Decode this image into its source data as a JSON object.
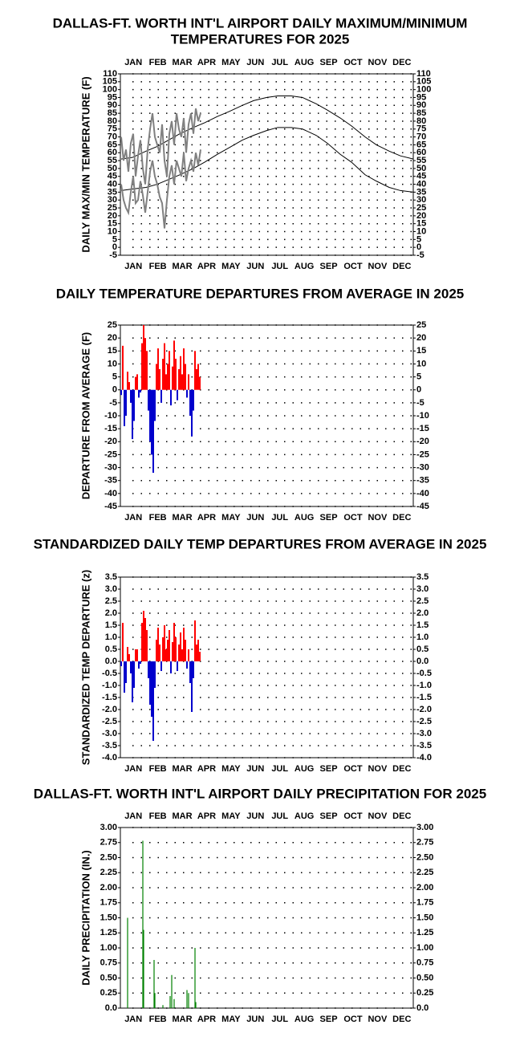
{
  "chart_data": [
    {
      "type": "line",
      "title": [
        "DALLAS-FT. WORTH INT'L AIRPORT DAILY MAXIMUM/MINIMUM",
        "TEMPERATURES FOR 2025"
      ],
      "months": [
        "JAN",
        "FEB",
        "MAR",
        "APR",
        "MAY",
        "JUN",
        "JUL",
        "AUG",
        "SEP",
        "OCT",
        "NOV",
        "DEC"
      ],
      "y_label": "DAILY MAX/MIN TEMPERATURE (F)",
      "xlim": [
        0,
        365
      ],
      "ylim": [
        -5,
        110
      ],
      "yticks": [
        -5,
        0,
        5,
        10,
        15,
        20,
        25,
        30,
        35,
        40,
        45,
        50,
        55,
        60,
        65,
        70,
        75,
        80,
        85,
        90,
        95,
        100,
        105,
        110
      ],
      "grid": true,
      "series": [
        {
          "color": "#000000",
          "x": [
            1,
            15,
            32,
            46,
            60,
            74,
            91,
            105,
            121,
            135,
            152,
            166,
            182,
            196,
            213,
            227,
            244,
            258,
            274,
            288,
            305,
            319,
            335,
            349,
            365
          ],
          "values": [
            56,
            57,
            61,
            64,
            68,
            72,
            76,
            79,
            83,
            86,
            90,
            93,
            95,
            96,
            96,
            95,
            91,
            87,
            82,
            77,
            70,
            65,
            61,
            58,
            56
          ]
        },
        {
          "color": "#000000",
          "x": [
            1,
            15,
            32,
            46,
            60,
            74,
            91,
            105,
            121,
            135,
            152,
            166,
            182,
            196,
            213,
            227,
            244,
            258,
            274,
            288,
            305,
            319,
            335,
            349,
            365
          ],
          "values": [
            36,
            37,
            38,
            40,
            43,
            46,
            50,
            54,
            59,
            63,
            68,
            71,
            74,
            76,
            76,
            75,
            71,
            66,
            59,
            54,
            46,
            42,
            38,
            36,
            35
          ]
        },
        {
          "color": "#808080",
          "x": [
            1,
            4,
            7,
            10,
            13,
            16,
            19,
            22,
            25,
            28,
            31,
            34,
            37,
            40,
            43,
            46,
            49,
            52,
            55,
            58,
            61,
            64,
            67,
            70,
            73,
            76,
            79,
            82,
            85,
            88,
            91,
            94,
            97,
            100
          ],
          "values": [
            70,
            55,
            62,
            48,
            66,
            72,
            45,
            58,
            68,
            50,
            40,
            62,
            75,
            85,
            70,
            65,
            60,
            78,
            55,
            45,
            72,
            80,
            65,
            85,
            75,
            70,
            82,
            60,
            78,
            85,
            72,
            88,
            80,
            85
          ]
        },
        {
          "color": "#808080",
          "x": [
            1,
            4,
            7,
            10,
            13,
            16,
            19,
            22,
            25,
            28,
            31,
            34,
            37,
            40,
            43,
            46,
            49,
            52,
            55,
            58,
            61,
            64,
            67,
            70,
            73,
            76,
            79,
            82,
            85,
            88,
            91,
            94,
            97,
            100
          ],
          "values": [
            40,
            30,
            25,
            22,
            35,
            45,
            28,
            30,
            42,
            33,
            22,
            35,
            48,
            55,
            45,
            40,
            32,
            28,
            12,
            30,
            45,
            52,
            40,
            55,
            50,
            45,
            60,
            42,
            50,
            55,
            48,
            60,
            52,
            62
          ]
        }
      ]
    },
    {
      "type": "bar",
      "title": [
        "DAILY TEMPERATURE DEPARTURES FROM AVERAGE IN 2025"
      ],
      "months": [
        "JAN",
        "FEB",
        "MAR",
        "APR",
        "MAY",
        "JUN",
        "JUL",
        "AUG",
        "SEP",
        "OCT",
        "NOV",
        "DEC"
      ],
      "y_label": "DEPARTURE FROM AVERAGE (F)",
      "xlim": [
        0,
        365
      ],
      "ylim": [
        -45,
        25
      ],
      "yticks": [
        -45,
        -40,
        -35,
        -30,
        -25,
        -20,
        -15,
        -10,
        -5,
        0,
        5,
        10,
        15,
        20,
        25
      ],
      "grid": true,
      "pos_color": "#ff0000",
      "neg_color": "#0000cc",
      "x": [
        1,
        3,
        5,
        7,
        9,
        11,
        13,
        15,
        17,
        19,
        21,
        23,
        25,
        27,
        29,
        31,
        33,
        35,
        37,
        39,
        41,
        43,
        45,
        47,
        49,
        51,
        53,
        55,
        57,
        59,
        61,
        63,
        65,
        67,
        69,
        71,
        73,
        75,
        77,
        79,
        81,
        83,
        85,
        87,
        89,
        91,
        93,
        95,
        97,
        99
      ],
      "values": [
        -2,
        17,
        -14,
        -10,
        7,
        3,
        -5,
        -19,
        -12,
        5,
        6,
        -3,
        -1,
        18,
        25,
        20,
        15,
        -8,
        -20,
        -25,
        -32,
        -12,
        10,
        16,
        8,
        -5,
        12,
        18,
        6,
        10,
        15,
        -6,
        9,
        19,
        12,
        -4,
        8,
        13,
        6,
        16,
        10,
        -3,
        6,
        -10,
        -18,
        -8,
        15,
        8,
        10,
        5
      ]
    },
    {
      "type": "bar",
      "title": [
        "STANDARDIZED DAILY TEMP DEPARTURES FROM AVERAGE IN 2025"
      ],
      "months": [
        "JAN",
        "FEB",
        "MAR",
        "APR",
        "MAY",
        "JUN",
        "JUL",
        "AUG",
        "SEP",
        "OCT",
        "NOV",
        "DEC"
      ],
      "y_label": "STANDARDIZED TEMP DEPARTURE (z)",
      "xlim": [
        0,
        365
      ],
      "ylim": [
        -4,
        3.5
      ],
      "yticks": [
        {
          "value": -4,
          "label": "-4.0"
        },
        -3.5,
        {
          "value": -3,
          "label": "-3.0"
        },
        -2.5,
        {
          "value": -2,
          "label": "-2.0"
        },
        -1.5,
        {
          "value": -1,
          "label": "-1.0"
        },
        -0.5,
        {
          "value": 0,
          "label": "0.0"
        },
        0.5,
        {
          "value": 1,
          "label": "1.0"
        },
        1.5,
        {
          "value": 2,
          "label": "2.0"
        },
        2.5,
        {
          "value": 3,
          "label": "3.0"
        },
        3.5
      ],
      "grid": true,
      "pos_color": "#ff0000",
      "neg_color": "#0000cc",
      "x": [
        1,
        3,
        5,
        7,
        9,
        11,
        13,
        15,
        17,
        19,
        21,
        23,
        25,
        27,
        29,
        31,
        33,
        35,
        37,
        39,
        41,
        43,
        45,
        47,
        49,
        51,
        53,
        55,
        57,
        59,
        61,
        63,
        65,
        67,
        69,
        71,
        73,
        75,
        77,
        79,
        81,
        83,
        85,
        87,
        89,
        91,
        93,
        95,
        97,
        99
      ],
      "values": [
        -0.2,
        1.6,
        -1.3,
        -0.9,
        0.6,
        0.3,
        -0.5,
        -1.7,
        -1.1,
        0.5,
        0.5,
        -0.3,
        -0.1,
        1.6,
        2.1,
        1.8,
        1.3,
        -0.7,
        -1.8,
        -2.3,
        -3.3,
        -1.1,
        0.9,
        1.4,
        0.7,
        -0.4,
        1.0,
        1.5,
        0.5,
        0.9,
        1.3,
        -0.5,
        0.8,
        1.6,
        1.0,
        -0.4,
        0.7,
        1.2,
        0.5,
        1.4,
        0.9,
        -0.3,
        0.5,
        -0.9,
        -2.1,
        -0.7,
        1.7,
        0.7,
        0.9,
        0.4
      ]
    },
    {
      "type": "bar",
      "title": [
        "DALLAS-FT. WORTH INT'L AIRPORT DAILY PRECIPITATION FOR 2025"
      ],
      "months": [
        "JAN",
        "FEB",
        "MAR",
        "APR",
        "MAY",
        "JUN",
        "JUL",
        "AUG",
        "SEP",
        "OCT",
        "NOV",
        "DEC"
      ],
      "y_label": "DAILY PRECIPITATION (IN.)",
      "xlim": [
        0,
        365
      ],
      "ylim": [
        0,
        3
      ],
      "yticks": [
        {
          "value": 0,
          "label": "0.0"
        },
        0.25,
        {
          "value": 0.5,
          "label": "0.50"
        },
        0.75,
        {
          "value": 1,
          "label": "1.00"
        },
        1.25,
        {
          "value": 1.5,
          "label": "1.50"
        },
        1.75,
        {
          "value": 2,
          "label": "2.00"
        },
        2.25,
        {
          "value": 2.5,
          "label": "2.50"
        },
        2.75,
        {
          "value": 3,
          "label": "3.00"
        }
      ],
      "grid": true,
      "pos_color": "#008000",
      "x": [
        9,
        28,
        29,
        42,
        43,
        53,
        62,
        64,
        67,
        83,
        85,
        93,
        94
      ],
      "values": [
        1.5,
        2.78,
        1.3,
        0.8,
        0.25,
        0.05,
        0.2,
        0.55,
        0.15,
        0.3,
        0.25,
        1.0,
        0.1
      ]
    }
  ]
}
